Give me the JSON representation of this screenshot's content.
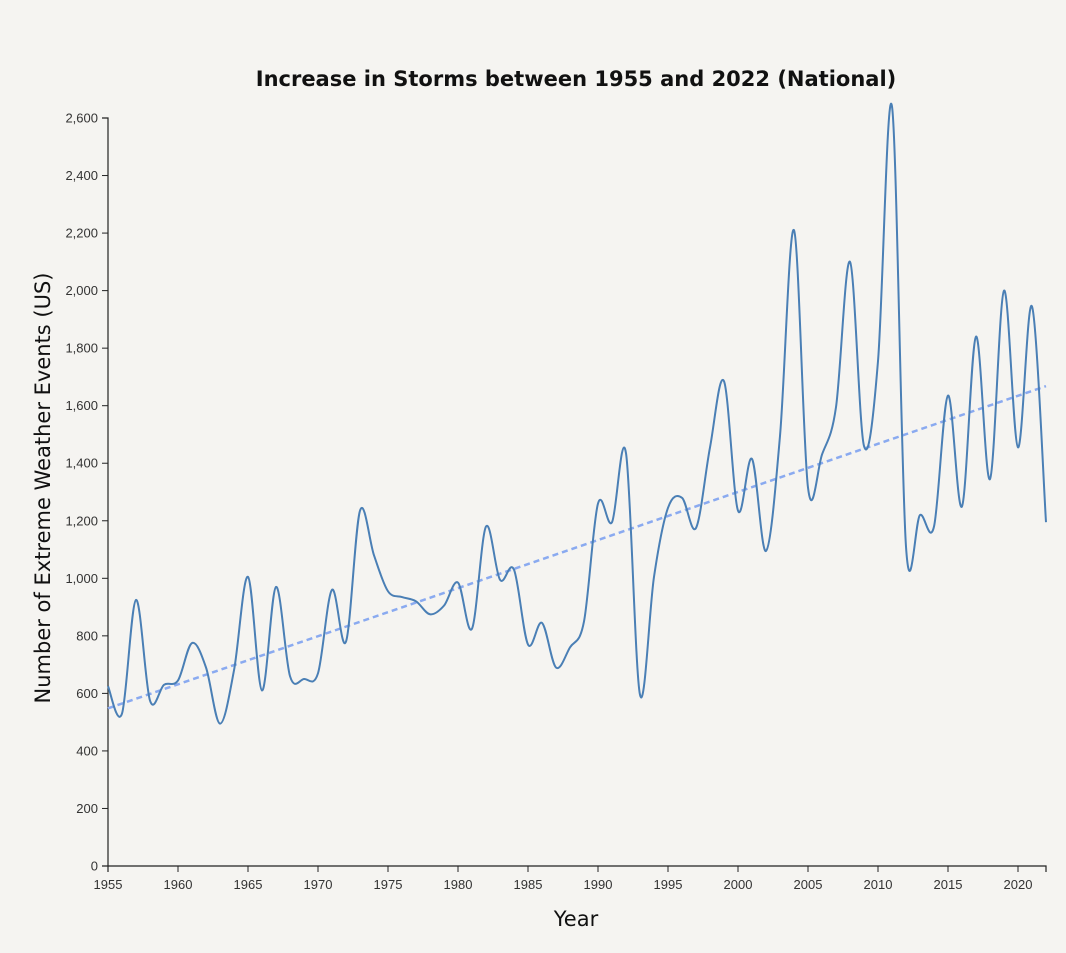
{
  "chart_data": {
    "type": "line",
    "title": "Increase in Storms between 1955 and 2022 (National)",
    "xlabel": "Year",
    "ylabel": "Number of Extreme Weather Events (US)",
    "xlim": [
      1955,
      2022
    ],
    "ylim": [
      0,
      2600
    ],
    "x_ticks": [
      1955,
      1960,
      1965,
      1970,
      1975,
      1980,
      1985,
      1990,
      1995,
      2000,
      2005,
      2010,
      2015,
      2020
    ],
    "x_tick_labels": [
      "1955",
      "1960",
      "1965",
      "1970",
      "1975",
      "1980",
      "1985",
      "1990",
      "1995",
      "2000",
      "2005",
      "2010",
      "2015",
      "2020"
    ],
    "y_ticks": [
      0,
      200,
      400,
      600,
      800,
      1000,
      1200,
      1400,
      1600,
      1800,
      2000,
      2200,
      2400,
      2600
    ],
    "y_tick_labels": [
      "0",
      "200",
      "400",
      "600",
      "800",
      "1,000",
      "1,200",
      "1,400",
      "1,600",
      "1,800",
      "2,000",
      "2,200",
      "2,400",
      "2,600"
    ],
    "grid": false,
    "series": [
      {
        "x": [
          1955,
          1956,
          1957,
          1958,
          1959,
          1960,
          1961,
          1962,
          1963,
          1964,
          1965,
          1966,
          1967,
          1968,
          1969,
          1970,
          1971,
          1972,
          1973,
          1974,
          1975,
          1976,
          1977,
          1978,
          1979,
          1980,
          1981,
          1982,
          1983,
          1984,
          1985,
          1986,
          1987,
          1988,
          1989,
          1990,
          1991,
          1992,
          1993,
          1994,
          1995,
          1996,
          1997,
          1998,
          1999,
          2000,
          2001,
          2002,
          2003,
          2004,
          2005,
          2006,
          2007,
          2008,
          2009,
          2010,
          2011,
          2012,
          2013,
          2014,
          2015,
          2016,
          2017,
          2018,
          2019,
          2020,
          2021,
          2022
        ],
        "values": [
          625,
          530,
          925,
          575,
          630,
          645,
          775,
          690,
          495,
          680,
          1005,
          610,
          970,
          660,
          650,
          670,
          960,
          780,
          1235,
          1080,
          955,
          935,
          920,
          875,
          905,
          985,
          825,
          1180,
          995,
          1030,
          770,
          845,
          690,
          760,
          850,
          1260,
          1195,
          1435,
          595,
          1005,
          1245,
          1280,
          1175,
          1455,
          1685,
          1235,
          1415,
          1095,
          1495,
          2210,
          1315,
          1430,
          1595,
          2100,
          1460,
          1755,
          2640,
          1110,
          1220,
          1180,
          1635,
          1250,
          1840,
          1345,
          2000,
          1455,
          1945,
          1195
        ],
        "color": "#4a7fb5"
      }
    ],
    "trendline": {
      "x": [
        1955,
        2022
      ],
      "values": [
        548,
        1668
      ],
      "color": "#8aaaf0",
      "style": "dashed"
    }
  }
}
